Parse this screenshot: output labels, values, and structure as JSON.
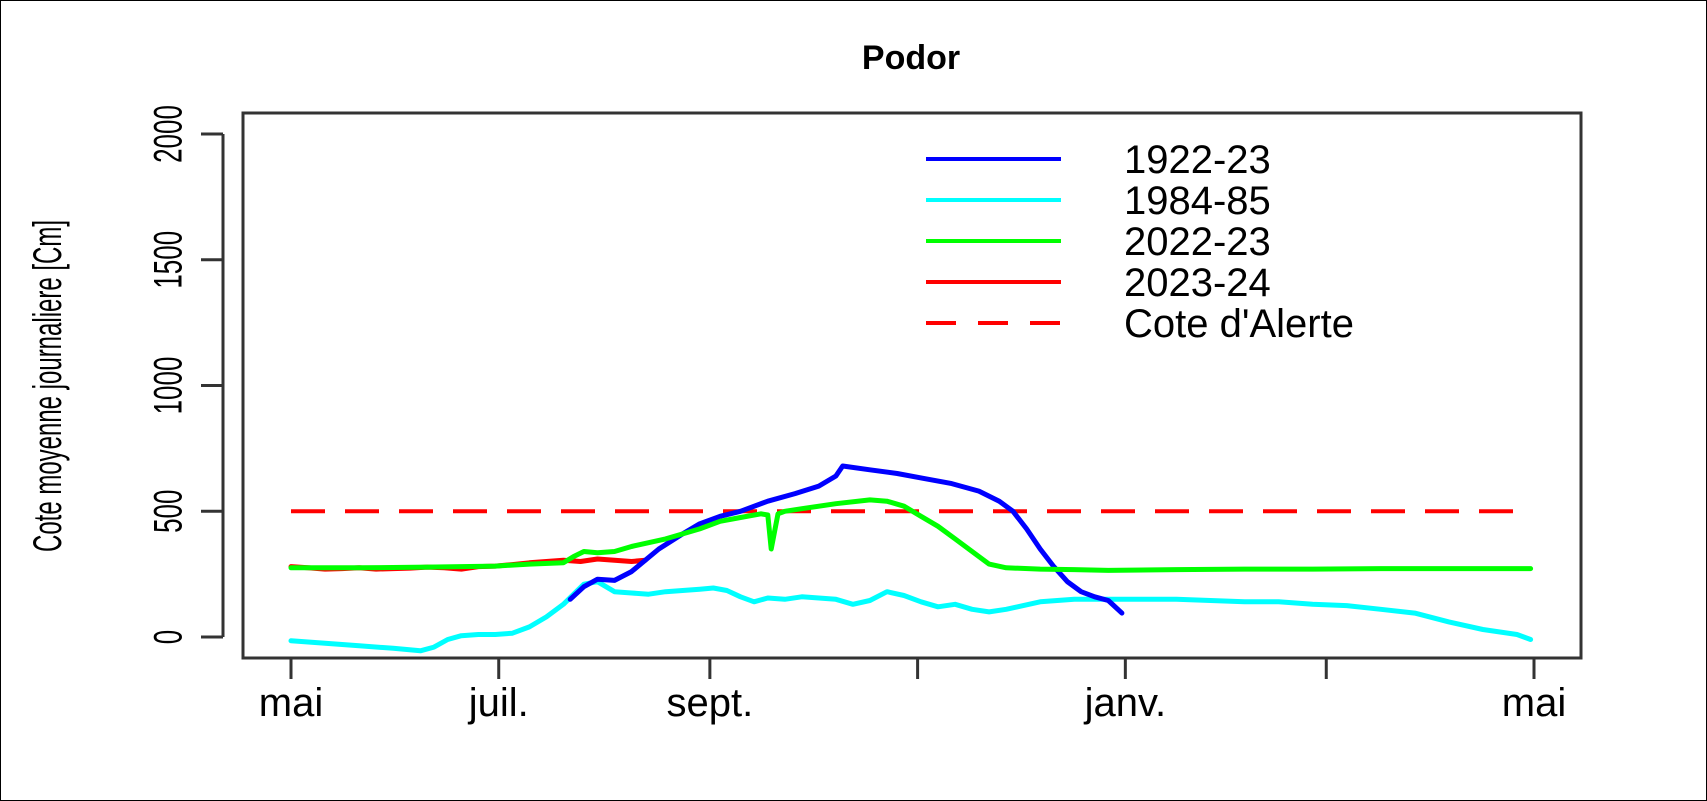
{
  "chart_data": {
    "type": "line",
    "title": "Podor",
    "xlabel": "",
    "ylabel": "Cote moyenne journaliere [Cm]",
    "ylim": [
      0,
      2000
    ],
    "y_ticks": [
      0,
      500,
      1000,
      1500,
      2000
    ],
    "x_axis": {
      "unit": "day of hydrological year starting May 1",
      "range": [
        0,
        365
      ],
      "ticks": [
        {
          "x": 0,
          "label": "mai"
        },
        {
          "x": 61,
          "label": "juil."
        },
        {
          "x": 123,
          "label": "sept."
        },
        {
          "x": 184,
          "label": ""
        },
        {
          "x": 245,
          "label": "janv."
        },
        {
          "x": 304,
          "label": ""
        },
        {
          "x": 365,
          "label": "mai"
        }
      ]
    },
    "grid": false,
    "legend_position": "top-right",
    "series": [
      {
        "name": "1922-23",
        "color": "#0000ff",
        "x": [
          82,
          86,
          90,
          95,
          100,
          108,
          115,
          120,
          126,
          132,
          140,
          148,
          155,
          160,
          162,
          170,
          178,
          186,
          194,
          202,
          208,
          212,
          216,
          220,
          224,
          228,
          232,
          236,
          240,
          244
        ],
        "y": [
          150,
          200,
          230,
          225,
          260,
          350,
          410,
          450,
          480,
          500,
          540,
          570,
          600,
          640,
          680,
          665,
          650,
          630,
          610,
          580,
          540,
          500,
          430,
          350,
          280,
          220,
          180,
          160,
          145,
          95
        ]
      },
      {
        "name": "1984-85",
        "color": "#00ffff",
        "x": [
          0,
          10,
          20,
          30,
          38,
          42,
          46,
          50,
          55,
          60,
          65,
          70,
          75,
          80,
          83,
          86,
          90,
          95,
          100,
          105,
          110,
          115,
          120,
          124,
          128,
          132,
          136,
          140,
          145,
          150,
          155,
          160,
          165,
          170,
          175,
          180,
          185,
          190,
          195,
          200,
          205,
          210,
          220,
          230,
          240,
          250,
          260,
          270,
          280,
          290,
          300,
          310,
          320,
          330,
          340,
          350,
          360,
          364
        ],
        "y": [
          -15,
          -25,
          -35,
          -45,
          -55,
          -40,
          -10,
          5,
          10,
          10,
          15,
          40,
          80,
          130,
          170,
          210,
          220,
          180,
          175,
          170,
          180,
          185,
          190,
          195,
          185,
          160,
          140,
          155,
          150,
          160,
          155,
          150,
          130,
          145,
          180,
          165,
          140,
          120,
          130,
          110,
          100,
          110,
          140,
          150,
          150,
          150,
          150,
          145,
          140,
          140,
          130,
          125,
          110,
          95,
          60,
          30,
          10,
          -10
        ]
      },
      {
        "name": "2022-23",
        "color": "#00ff00",
        "x": [
          0,
          20,
          40,
          60,
          70,
          80,
          83,
          86,
          90,
          95,
          100,
          110,
          120,
          126,
          132,
          138,
          140,
          141,
          142,
          143,
          145,
          150,
          160,
          170,
          175,
          180,
          185,
          190,
          195,
          200,
          205,
          210,
          220,
          230,
          240,
          260,
          280,
          300,
          320,
          340,
          360,
          364
        ],
        "y": [
          275,
          275,
          278,
          282,
          290,
          295,
          320,
          340,
          335,
          340,
          360,
          390,
          430,
          460,
          475,
          490,
          485,
          350,
          420,
          490,
          500,
          510,
          530,
          545,
          540,
          520,
          480,
          440,
          390,
          340,
          290,
          275,
          270,
          268,
          265,
          268,
          270,
          270,
          272,
          272,
          272,
          272
        ],
        "dip": {
          "x": 141,
          "y": 350
        }
      },
      {
        "name": "2023-24",
        "color": "#ff0000",
        "x": [
          0,
          5,
          10,
          15,
          20,
          25,
          30,
          35,
          40,
          45,
          50,
          55,
          60,
          65,
          70,
          75,
          80,
          85,
          90,
          95,
          100,
          104
        ],
        "y": [
          280,
          275,
          270,
          272,
          275,
          270,
          272,
          274,
          278,
          275,
          270,
          280,
          282,
          288,
          295,
          300,
          305,
          300,
          310,
          305,
          300,
          305
        ]
      },
      {
        "name": "Cote d'Alerte",
        "color": "#ff0000",
        "dashed": true,
        "x": [
          0,
          360
        ],
        "y": [
          500,
          500
        ]
      }
    ]
  }
}
